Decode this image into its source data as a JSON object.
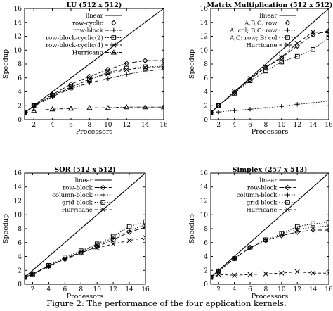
{
  "caption": "Figure 2: The performance of the four application kernels.",
  "colors": {
    "ink": "#000000",
    "background": "#ffffff"
  },
  "chart_data": [
    {
      "type": "line",
      "title": "LU (512 x 512)",
      "xlabel": "Processors",
      "ylabel": "Speedup",
      "xlim": [
        1,
        16
      ],
      "ylim": [
        0,
        16
      ],
      "xticks": [
        2,
        4,
        6,
        8,
        10,
        12,
        14,
        16
      ],
      "yticks": [
        2,
        4,
        6,
        8,
        10,
        12,
        14,
        16
      ],
      "grid": false,
      "legend_position": "top-left",
      "series": [
        {
          "name": "linear",
          "marker": "none",
          "dash": "solid",
          "x": [
            1,
            16
          ],
          "y": [
            1,
            16
          ]
        },
        {
          "name": "row-cyclic",
          "marker": "diamond",
          "dash": "long-dash",
          "x": [
            1,
            2,
            4,
            6,
            8,
            10,
            12,
            14,
            16
          ],
          "y": [
            1,
            2,
            3.6,
            5.1,
            6.2,
            7.2,
            8.1,
            8.5,
            8.5
          ]
        },
        {
          "name": "row-block",
          "marker": "plus",
          "dash": "dash-dot",
          "x": [
            1,
            2,
            4,
            6,
            8,
            10,
            12,
            14,
            16
          ],
          "y": [
            1,
            1.9,
            3.3,
            4.5,
            5.3,
            5.9,
            6.5,
            7.0,
            7.2
          ]
        },
        {
          "name": "row-block-cyclic(2)",
          "marker": "square",
          "dash": "dotted",
          "x": [
            1,
            2,
            4,
            6,
            8,
            10,
            12,
            14,
            16
          ],
          "y": [
            1,
            2,
            3.5,
            4.7,
            5.8,
            6.8,
            7.4,
            7.6,
            7.7
          ]
        },
        {
          "name": "row-block-cyclic(4)",
          "marker": "cross",
          "dash": "dash",
          "x": [
            1,
            2,
            4,
            6,
            8,
            10,
            12,
            14,
            16
          ],
          "y": [
            1,
            1.95,
            3.5,
            4.6,
            5.8,
            6.6,
            7.2,
            7.5,
            7.5
          ]
        },
        {
          "name": "Hurricane",
          "marker": "triangle",
          "dash": "dash-dot",
          "x": [
            1,
            2,
            4,
            6,
            8,
            10,
            12,
            14,
            16
          ],
          "y": [
            1,
            1.3,
            1.5,
            1.6,
            1.7,
            1.7,
            1.8,
            1.8,
            1.8
          ]
        }
      ]
    },
    {
      "type": "line",
      "title": "Matrix Multiplication (512 x 512)",
      "xlabel": "Processors",
      "ylabel": "Speedup",
      "xlim": [
        1,
        16
      ],
      "ylim": [
        0,
        16
      ],
      "xticks": [
        2,
        4,
        6,
        8,
        10,
        12,
        14,
        16
      ],
      "yticks": [
        2,
        4,
        6,
        8,
        10,
        12,
        14,
        16
      ],
      "grid": false,
      "legend_position": "top-left",
      "series": [
        {
          "name": "linear",
          "marker": "none",
          "dash": "solid",
          "x": [
            1,
            16
          ],
          "y": [
            1,
            16
          ]
        },
        {
          "name": "A,B,C: row",
          "marker": "diamond",
          "dash": "long-dash",
          "x": [
            1,
            2,
            4,
            6,
            8,
            10,
            12,
            14,
            16
          ],
          "y": [
            1,
            2,
            3.9,
            5.8,
            7.5,
            8.9,
            10.6,
            12.2,
            12.8
          ]
        },
        {
          "name": "A: col; B,C: row",
          "marker": "plus",
          "dash": "dotted",
          "x": [
            1,
            2,
            4,
            6,
            8,
            10,
            12,
            14,
            16
          ],
          "y": [
            1,
            1.1,
            1.3,
            1.5,
            1.7,
            1.9,
            2.2,
            2.4,
            2.7
          ]
        },
        {
          "name": "A,C: row; B: col",
          "marker": "square",
          "dash": "dotted",
          "x": [
            1,
            2,
            4,
            6,
            8,
            10,
            12,
            14,
            16
          ],
          "y": [
            1,
            2,
            3.8,
            5.6,
            7.0,
            8.3,
            9.1,
            10.1,
            11.8
          ]
        },
        {
          "name": "Hurricane",
          "marker": "cross",
          "dash": "dash",
          "x": [
            1,
            2,
            4,
            6,
            8,
            10,
            12,
            14,
            16
          ],
          "y": [
            1,
            2,
            4.0,
            5.9,
            7.6,
            9.0,
            11.0,
            12.6,
            12.5
          ]
        }
      ]
    },
    {
      "type": "line",
      "title": "SOR (512 x 512)",
      "xlabel": "Processors",
      "ylabel": "Speedup",
      "xlim": [
        1,
        16
      ],
      "ylim": [
        0,
        16
      ],
      "xticks": [
        2,
        4,
        6,
        8,
        10,
        12,
        14,
        16
      ],
      "yticks": [
        2,
        4,
        6,
        8,
        10,
        12,
        14,
        16
      ],
      "grid": false,
      "legend_position": "top-left",
      "series": [
        {
          "name": "linear",
          "marker": "none",
          "dash": "solid",
          "x": [
            1,
            16
          ],
          "y": [
            1,
            16
          ]
        },
        {
          "name": "row-block",
          "marker": "diamond",
          "dash": "long-dash",
          "x": [
            1,
            2,
            4,
            6,
            8,
            10,
            12,
            14,
            16
          ],
          "y": [
            1,
            1.5,
            2.6,
            3.6,
            4.5,
            5.4,
            6.4,
            7.5,
            8.2
          ]
        },
        {
          "name": "column-block",
          "marker": "plus",
          "dash": "dotted",
          "x": [
            1,
            2,
            4,
            6,
            8,
            10,
            12,
            14,
            16
          ],
          "y": [
            1,
            1.5,
            2.6,
            3.7,
            4.7,
            5.6,
            6.7,
            7.7,
            8.6
          ]
        },
        {
          "name": "grid-block",
          "marker": "square",
          "dash": "dotted",
          "x": [
            1,
            2,
            4,
            6,
            8,
            10,
            12,
            14,
            16
          ],
          "y": [
            1,
            1.5,
            2.7,
            3.9,
            4.8,
            5.8,
            6.9,
            8.3,
            9.0
          ]
        },
        {
          "name": "Hurricane",
          "marker": "cross",
          "dash": "dash",
          "x": [
            1,
            2,
            4,
            6,
            8,
            10,
            12,
            14,
            16
          ],
          "y": [
            1,
            1.4,
            2.6,
            3.7,
            4.6,
            5.2,
            5.8,
            6.3,
            6.7
          ]
        }
      ]
    },
    {
      "type": "line",
      "title": "Simplex (257 x 513)",
      "xlabel": "Processors",
      "ylabel": "Speedup",
      "xlim": [
        1,
        16
      ],
      "ylim": [
        0,
        16
      ],
      "xticks": [
        2,
        4,
        6,
        8,
        10,
        12,
        14,
        16
      ],
      "yticks": [
        2,
        4,
        6,
        8,
        10,
        12,
        14,
        16
      ],
      "grid": false,
      "legend_position": "top-left",
      "series": [
        {
          "name": "linear",
          "marker": "none",
          "dash": "solid",
          "x": [
            1,
            16
          ],
          "y": [
            1,
            16
          ]
        },
        {
          "name": "row-block",
          "marker": "diamond",
          "dash": "long-dash",
          "x": [
            1,
            2,
            4,
            6,
            8,
            10,
            12,
            14,
            16
          ],
          "y": [
            1,
            1.9,
            3.7,
            5.3,
            6.3,
            7.0,
            7.5,
            7.8,
            7.8
          ]
        },
        {
          "name": "column-block",
          "marker": "plus",
          "dash": "dotted",
          "x": [
            1,
            2,
            4,
            6,
            8,
            10,
            12,
            14,
            16
          ],
          "y": [
            1,
            1.9,
            3.7,
            5.2,
            6.4,
            7.2,
            7.9,
            8.2,
            8.4
          ]
        },
        {
          "name": "grid-block",
          "marker": "square",
          "dash": "dotted",
          "x": [
            1,
            2,
            4,
            6,
            8,
            10,
            12,
            14,
            16
          ],
          "y": [
            1,
            1.9,
            3.7,
            5.2,
            6.4,
            7.3,
            8.3,
            8.7,
            8.9
          ]
        },
        {
          "name": "Hurricane",
          "marker": "cross",
          "dash": "dash",
          "x": [
            1,
            2,
            4,
            6,
            8,
            10,
            12,
            14,
            16
          ],
          "y": [
            1,
            1.4,
            1.3,
            1.4,
            1.5,
            1.6,
            1.8,
            1.6,
            1.6
          ]
        }
      ]
    }
  ]
}
